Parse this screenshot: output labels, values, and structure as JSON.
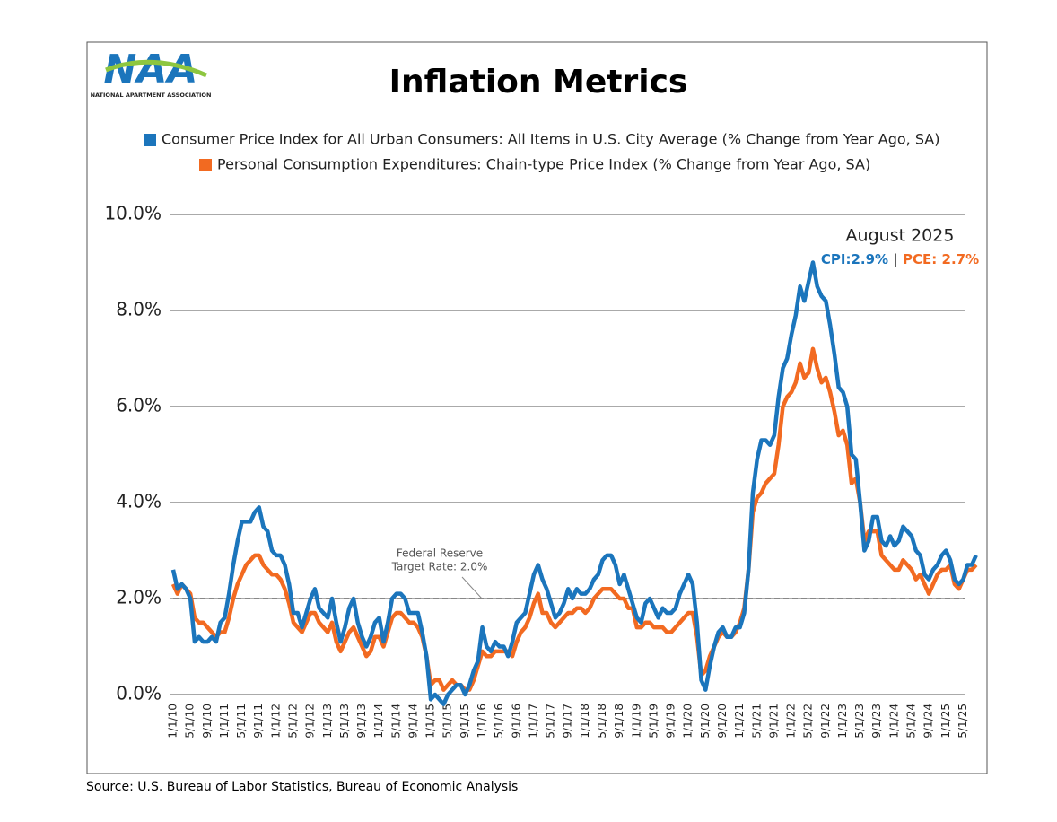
{
  "logo": {
    "text": "NAA",
    "subtitle": "NATIONAL APARTMENT ASSOCIATION"
  },
  "chart_data": {
    "type": "line",
    "title": "Inflation Metrics",
    "source": "Source: U.S. Bureau of Labor Statistics, Bureau of Economic Analysis",
    "categories": [
      "1/1/10",
      null,
      null,
      null,
      "5/1/10",
      null,
      null,
      null,
      "9/1/10",
      null,
      null,
      null,
      "1/1/11",
      null,
      null,
      null,
      "5/1/11",
      null,
      null,
      null,
      "9/1/11",
      null,
      null,
      null,
      "1/1/12",
      null,
      null,
      null,
      "5/1/12",
      null,
      null,
      null,
      "9/1/12",
      null,
      null,
      null,
      "1/1/13",
      null,
      null,
      null,
      "5/1/13",
      null,
      null,
      null,
      "9/1/13",
      null,
      null,
      null,
      "1/1/14",
      null,
      null,
      null,
      "5/1/14",
      null,
      null,
      null,
      "9/1/14",
      null,
      null,
      null,
      "1/1/15",
      null,
      null,
      null,
      "5/1/15",
      null,
      null,
      null,
      "9/1/15",
      null,
      null,
      null,
      "1/1/16",
      null,
      null,
      null,
      "5/1/16",
      null,
      null,
      null,
      "9/1/16",
      null,
      null,
      null,
      "1/1/17",
      null,
      null,
      null,
      "5/1/17",
      null,
      null,
      null,
      "9/1/17",
      null,
      null,
      null,
      "1/1/18",
      null,
      null,
      null,
      "5/1/18",
      null,
      null,
      null,
      "9/1/18",
      null,
      null,
      null,
      "1/1/19",
      null,
      null,
      null,
      "5/1/19",
      null,
      null,
      null,
      "9/1/19",
      null,
      null,
      null,
      "1/1/20",
      null,
      null,
      null,
      "5/1/20",
      null,
      null,
      null,
      "9/1/20",
      null,
      null,
      null,
      "1/1/21",
      null,
      null,
      null,
      "5/1/21",
      null,
      null,
      null,
      "9/1/21",
      null,
      null,
      null,
      "1/1/22",
      null,
      null,
      null,
      "5/1/22",
      null,
      null,
      null,
      "9/1/22",
      null,
      null,
      null,
      "1/1/23",
      null,
      null,
      null,
      "5/1/23",
      null,
      null,
      null,
      "9/1/23",
      null,
      null,
      null,
      "1/1/24",
      null,
      null,
      null,
      "5/1/24",
      null,
      null,
      null,
      "9/1/24",
      null,
      null,
      null,
      "1/1/25",
      null,
      null,
      null,
      "5/1/25",
      null,
      null,
      null
    ],
    "series": [
      {
        "name": "Consumer Price Index for All Urban Consumers: All Items in U.S. City Average (% Change from Year Ago, SA)",
        "color": "#1b75bc",
        "values": [
          2.6,
          2.2,
          2.3,
          2.2,
          2.0,
          1.1,
          1.2,
          1.1,
          1.1,
          1.2,
          1.1,
          1.5,
          1.6,
          2.1,
          2.7,
          3.2,
          3.6,
          3.6,
          3.6,
          3.8,
          3.9,
          3.5,
          3.4,
          3.0,
          2.9,
          2.9,
          2.7,
          2.3,
          1.7,
          1.7,
          1.4,
          1.7,
          2.0,
          2.2,
          1.8,
          1.7,
          1.6,
          2.0,
          1.5,
          1.1,
          1.4,
          1.8,
          2.0,
          1.5,
          1.2,
          1.0,
          1.2,
          1.5,
          1.6,
          1.1,
          1.5,
          2.0,
          2.1,
          2.1,
          2.0,
          1.7,
          1.7,
          1.7,
          1.3,
          0.8,
          -0.1,
          0.0,
          -0.1,
          -0.2,
          0.0,
          0.1,
          0.2,
          0.2,
          0.0,
          0.2,
          0.5,
          0.7,
          1.4,
          1.0,
          0.9,
          1.1,
          1.0,
          1.0,
          0.8,
          1.1,
          1.5,
          1.6,
          1.7,
          2.1,
          2.5,
          2.7,
          2.4,
          2.2,
          1.9,
          1.6,
          1.7,
          1.9,
          2.2,
          2.0,
          2.2,
          2.1,
          2.1,
          2.2,
          2.4,
          2.5,
          2.8,
          2.9,
          2.9,
          2.7,
          2.3,
          2.5,
          2.2,
          1.9,
          1.6,
          1.5,
          1.9,
          2.0,
          1.8,
          1.6,
          1.8,
          1.7,
          1.7,
          1.8,
          2.1,
          2.3,
          2.5,
          2.3,
          1.5,
          0.3,
          0.1,
          0.6,
          1.0,
          1.3,
          1.4,
          1.2,
          1.2,
          1.4,
          1.4,
          1.7,
          2.6,
          4.2,
          4.9,
          5.3,
          5.3,
          5.2,
          5.4,
          6.2,
          6.8,
          7.0,
          7.5,
          7.9,
          8.5,
          8.2,
          8.6,
          9.0,
          8.5,
          8.3,
          8.2,
          7.7,
          7.1,
          6.4,
          6.3,
          6.0,
          5.0,
          4.9,
          4.0,
          3.0,
          3.2,
          3.7,
          3.7,
          3.2,
          3.1,
          3.3,
          3.1,
          3.2,
          3.5,
          3.4,
          3.3,
          3.0,
          2.9,
          2.5,
          2.4,
          2.6,
          2.7,
          2.9,
          3.0,
          2.8,
          2.4,
          2.3,
          2.4,
          2.7,
          2.7,
          2.9
        ]
      },
      {
        "name": "Personal Consumption Expenditures: Chain-type Price Index (% Change from Year Ago, SA)",
        "color": "#f26a21",
        "values": [
          2.3,
          2.1,
          2.3,
          2.2,
          2.1,
          1.6,
          1.5,
          1.5,
          1.4,
          1.3,
          1.2,
          1.3,
          1.3,
          1.6,
          2.0,
          2.3,
          2.5,
          2.7,
          2.8,
          2.9,
          2.9,
          2.7,
          2.6,
          2.5,
          2.5,
          2.4,
          2.2,
          1.9,
          1.5,
          1.4,
          1.3,
          1.5,
          1.7,
          1.7,
          1.5,
          1.4,
          1.3,
          1.5,
          1.1,
          0.9,
          1.1,
          1.3,
          1.4,
          1.2,
          1.0,
          0.8,
          0.9,
          1.2,
          1.2,
          1.0,
          1.3,
          1.6,
          1.7,
          1.7,
          1.6,
          1.5,
          1.5,
          1.4,
          1.2,
          0.8,
          0.2,
          0.3,
          0.3,
          0.1,
          0.2,
          0.3,
          0.2,
          0.2,
          0.1,
          0.1,
          0.3,
          0.6,
          0.9,
          0.8,
          0.8,
          0.9,
          0.9,
          0.9,
          0.9,
          0.8,
          1.1,
          1.3,
          1.4,
          1.6,
          1.9,
          2.1,
          1.7,
          1.7,
          1.5,
          1.4,
          1.5,
          1.6,
          1.7,
          1.7,
          1.8,
          1.8,
          1.7,
          1.8,
          2.0,
          2.1,
          2.2,
          2.2,
          2.2,
          2.1,
          2.0,
          2.0,
          1.8,
          1.8,
          1.4,
          1.4,
          1.5,
          1.5,
          1.4,
          1.4,
          1.4,
          1.3,
          1.3,
          1.4,
          1.5,
          1.6,
          1.7,
          1.7,
          1.2,
          0.4,
          0.5,
          0.8,
          1.0,
          1.2,
          1.3,
          1.2,
          1.2,
          1.3,
          1.5,
          1.8,
          2.6,
          3.8,
          4.1,
          4.2,
          4.4,
          4.5,
          4.6,
          5.2,
          6.0,
          6.2,
          6.3,
          6.5,
          6.9,
          6.6,
          6.7,
          7.2,
          6.8,
          6.5,
          6.6,
          6.3,
          5.9,
          5.4,
          5.5,
          5.2,
          4.4,
          4.5,
          4.0,
          3.2,
          3.4,
          3.4,
          3.4,
          2.9,
          2.8,
          2.7,
          2.6,
          2.6,
          2.8,
          2.7,
          2.6,
          2.4,
          2.5,
          2.3,
          2.1,
          2.3,
          2.5,
          2.6,
          2.6,
          2.7,
          2.3,
          2.2,
          2.4,
          2.6,
          2.6,
          2.7
        ]
      }
    ],
    "ylim": [
      0,
      10
    ],
    "yticks": [
      {
        "value": 0,
        "label": "0.0%"
      },
      {
        "value": 2,
        "label": "2.0%"
      },
      {
        "value": 4,
        "label": "4.0%"
      },
      {
        "value": 6,
        "label": "6.0%"
      },
      {
        "value": 8,
        "label": "8.0%"
      },
      {
        "value": 10,
        "label": "10.0%"
      }
    ],
    "grid": true,
    "reference_line": {
      "value": 2.0,
      "label_lines": [
        "Federal Reserve",
        "Target Rate: 2.0%"
      ]
    },
    "annotation": {
      "title": "August 2025",
      "cpi": "CPI:2.9%",
      "separator": "|",
      "pce": "PCE: 2.7%"
    }
  }
}
